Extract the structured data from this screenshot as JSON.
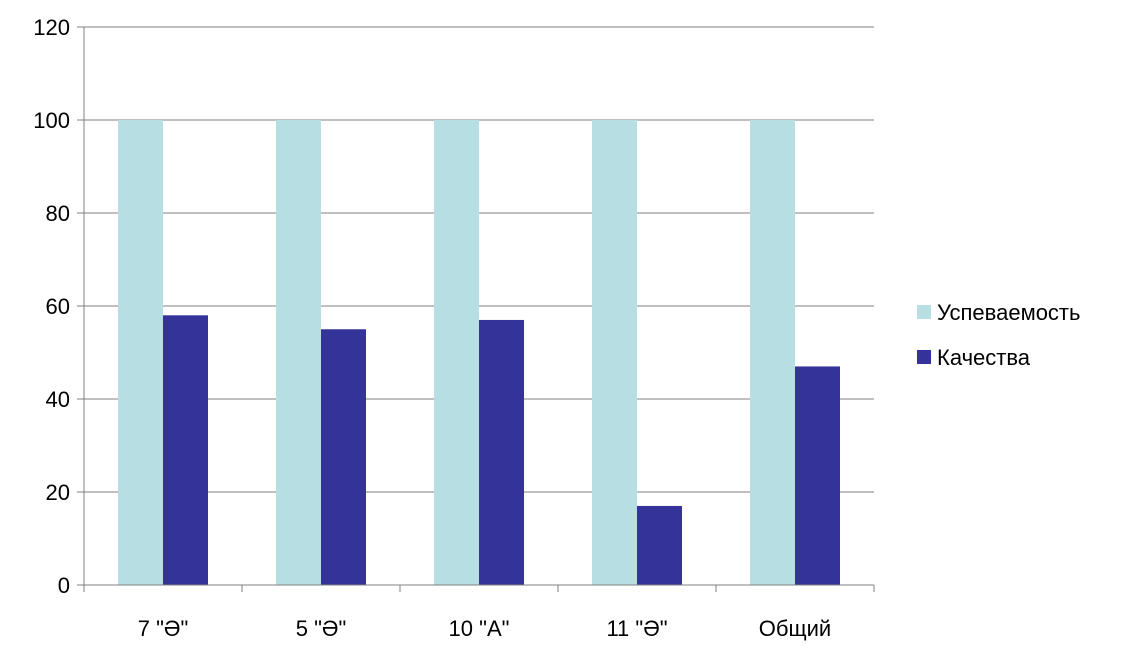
{
  "chart_data": {
    "type": "bar",
    "categories": [
      "7 \"Ә\"",
      "5 \"Ә\"",
      "10 \"А\"",
      "11 \"Ә\"",
      "Общий"
    ],
    "series": [
      {
        "name": "Успеваемость",
        "values": [
          100,
          100,
          100,
          100,
          100
        ],
        "color": "#b7dfe3"
      },
      {
        "name": "Качества",
        "values": [
          58,
          55,
          57,
          17,
          47
        ],
        "color": "#333399"
      }
    ],
    "ylim": [
      0,
      120
    ],
    "yticks": [
      0,
      20,
      40,
      60,
      80,
      100,
      120
    ],
    "grid": true,
    "legend_position": "right"
  }
}
